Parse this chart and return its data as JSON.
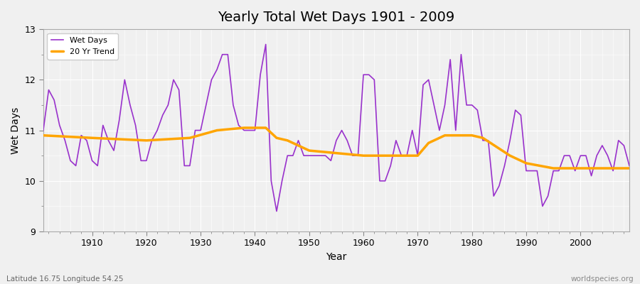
{
  "title": "Yearly Total Wet Days 1901 - 2009",
  "xlabel": "Year",
  "ylabel": "Wet Days",
  "subtitle_left": "Latitude 16.75 Longitude 54.25",
  "subtitle_right": "worldspecies.org",
  "line_color": "#9932CC",
  "trend_color": "#FFA500",
  "background_color": "#f0f0f0",
  "plot_bg_color": "#f0f0f0",
  "ylim": [
    9,
    13
  ],
  "xlim": [
    1901,
    2009
  ],
  "years": [
    1901,
    1902,
    1903,
    1904,
    1905,
    1906,
    1907,
    1908,
    1909,
    1910,
    1911,
    1912,
    1913,
    1914,
    1915,
    1916,
    1917,
    1918,
    1919,
    1920,
    1921,
    1922,
    1923,
    1924,
    1925,
    1926,
    1927,
    1928,
    1929,
    1930,
    1931,
    1932,
    1933,
    1934,
    1935,
    1936,
    1937,
    1938,
    1939,
    1940,
    1941,
    1942,
    1943,
    1944,
    1945,
    1946,
    1947,
    1948,
    1949,
    1950,
    1951,
    1952,
    1953,
    1954,
    1955,
    1956,
    1957,
    1958,
    1959,
    1960,
    1961,
    1962,
    1963,
    1964,
    1965,
    1966,
    1967,
    1968,
    1969,
    1970,
    1971,
    1972,
    1973,
    1974,
    1975,
    1976,
    1977,
    1978,
    1979,
    1980,
    1981,
    1982,
    1983,
    1984,
    1985,
    1986,
    1987,
    1988,
    1989,
    1990,
    1991,
    1992,
    1993,
    1994,
    1995,
    1996,
    1997,
    1998,
    1999,
    2000,
    2001,
    2002,
    2003,
    2004,
    2005,
    2006,
    2007,
    2008,
    2009
  ],
  "wet_days": [
    11.0,
    11.8,
    11.6,
    11.1,
    10.8,
    10.4,
    10.3,
    10.9,
    10.8,
    10.4,
    10.3,
    11.1,
    10.8,
    10.6,
    11.2,
    12.0,
    11.5,
    11.1,
    10.4,
    10.4,
    10.8,
    11.0,
    11.3,
    11.5,
    12.0,
    11.8,
    10.3,
    10.3,
    11.0,
    11.0,
    11.5,
    12.0,
    12.2,
    12.5,
    12.5,
    11.5,
    11.1,
    11.0,
    11.0,
    11.0,
    12.1,
    12.7,
    10.0,
    9.4,
    10.0,
    10.5,
    10.5,
    10.8,
    10.5,
    10.5,
    10.5,
    10.5,
    10.5,
    10.4,
    10.8,
    11.0,
    10.8,
    10.5,
    10.5,
    12.1,
    12.1,
    12.0,
    10.0,
    10.0,
    10.3,
    10.8,
    10.5,
    10.5,
    11.0,
    10.5,
    11.9,
    12.0,
    11.5,
    11.0,
    11.5,
    12.4,
    11.0,
    12.5,
    11.5,
    11.5,
    11.4,
    10.8,
    10.8,
    9.7,
    9.9,
    10.3,
    10.8,
    11.4,
    11.3,
    10.2,
    10.2,
    10.2,
    9.5,
    9.7,
    10.2,
    10.2,
    10.5,
    10.5,
    10.2,
    10.5,
    10.5,
    10.1,
    10.5,
    10.7,
    10.5,
    10.2,
    10.8,
    10.7,
    10.3
  ],
  "trend_years": [
    1901,
    1910,
    1920,
    1928,
    1933,
    1938,
    1942,
    1944,
    1946,
    1948,
    1950,
    1960,
    1970,
    1972,
    1975,
    1980,
    1982,
    1987,
    1990,
    1995,
    2000,
    2009
  ],
  "trend_values": [
    10.9,
    10.85,
    10.8,
    10.85,
    11.0,
    11.05,
    11.05,
    10.85,
    10.8,
    10.7,
    10.6,
    10.5,
    10.5,
    10.75,
    10.9,
    10.9,
    10.85,
    10.5,
    10.35,
    10.25,
    10.25,
    10.25
  ]
}
